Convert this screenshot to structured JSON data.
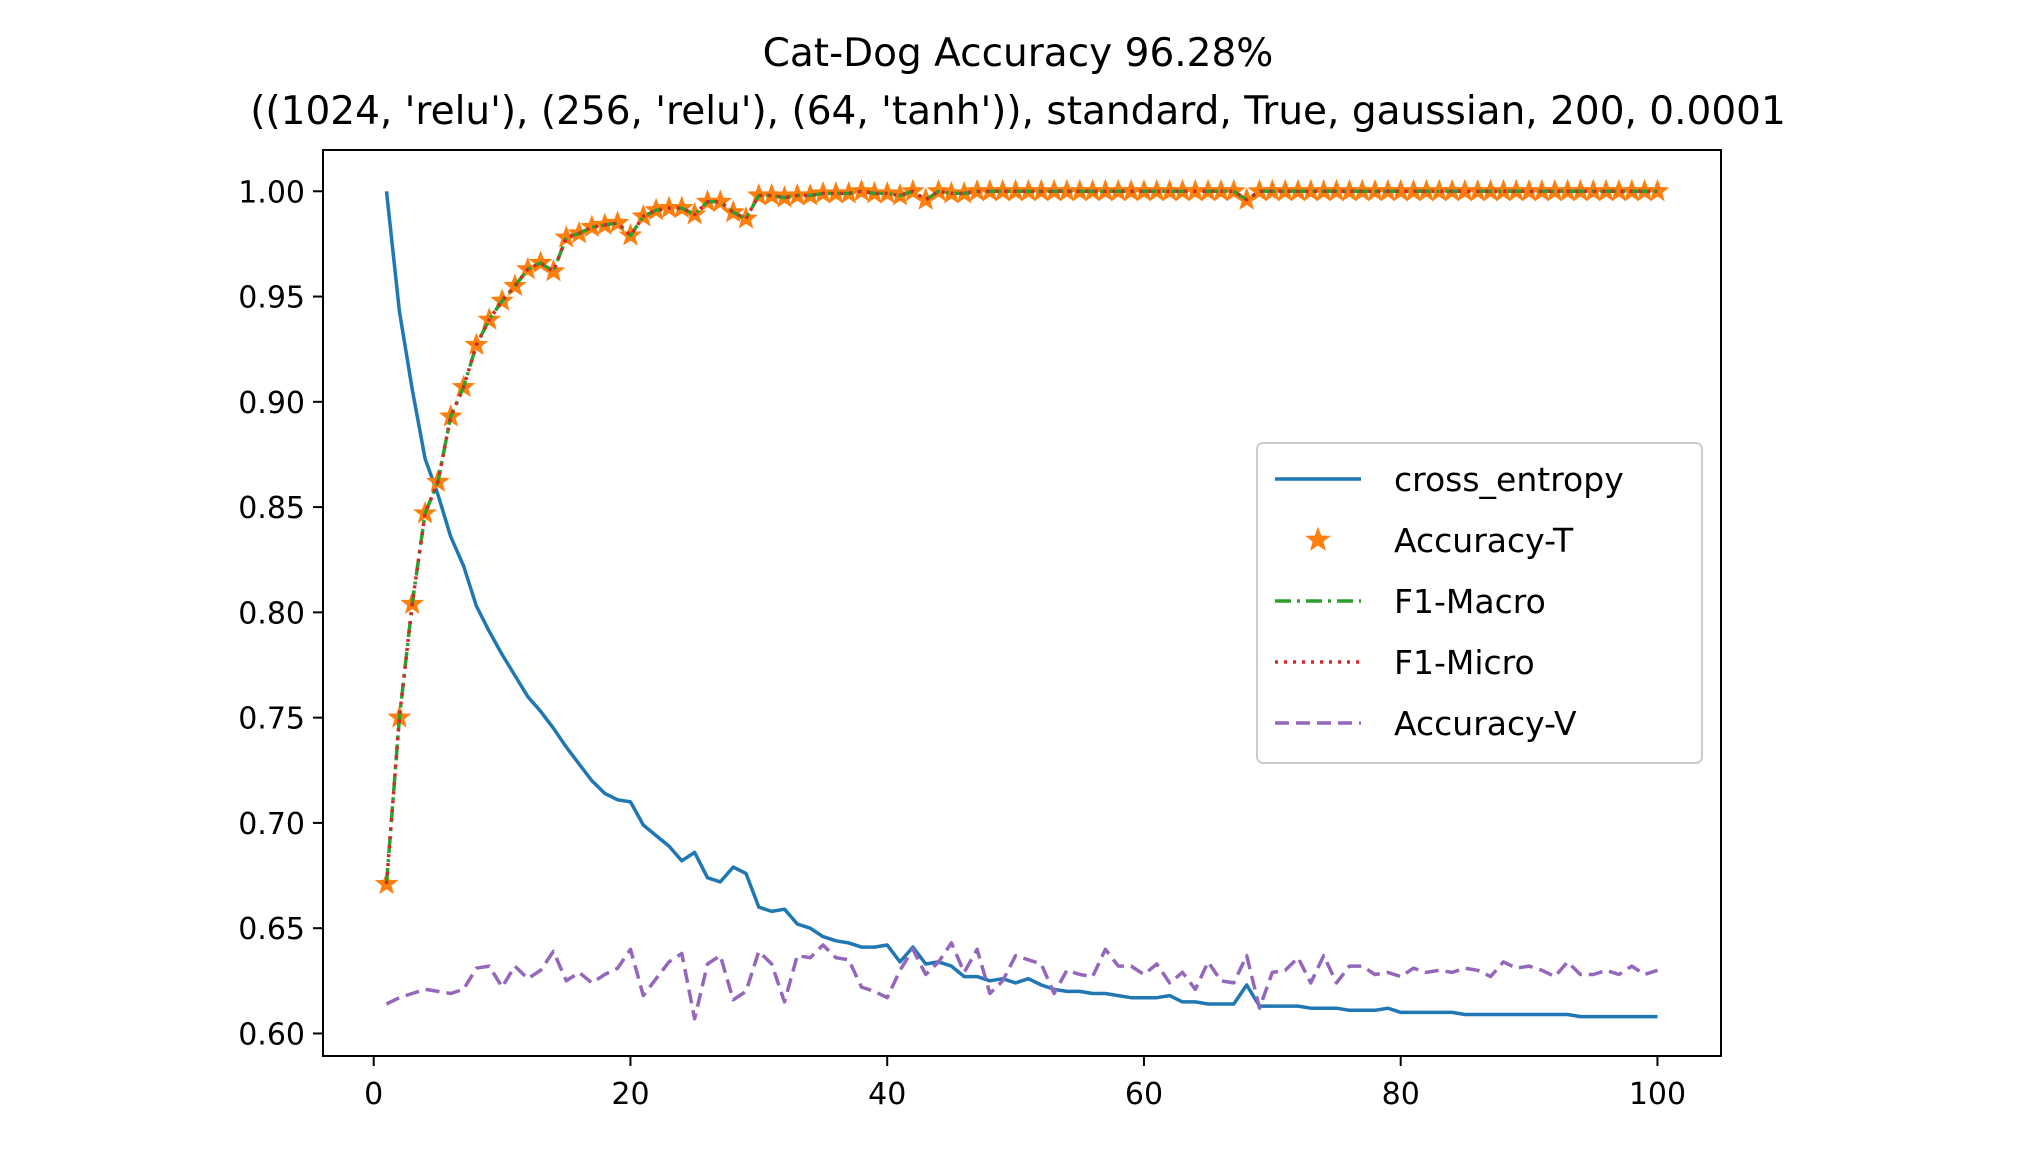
{
  "chart_data": {
    "type": "line",
    "title": "Cat-Dog Accuracy 96.28%",
    "subtitle": "((1024, 'relu'), (256, 'relu'), (64, 'tanh')), standard, True, gaussian, 200, 0.0001",
    "xlabel": "",
    "ylabel": "",
    "xlim": [
      -3.95,
      104.95
    ],
    "ylim": [
      0.5893,
      1.0196
    ],
    "xticks": [
      0,
      20,
      40,
      60,
      80,
      100
    ],
    "xtick_labels": [
      "0",
      "20",
      "40",
      "60",
      "80",
      "100"
    ],
    "yticks": [
      0.6,
      0.65,
      0.7,
      0.75,
      0.8,
      0.85,
      0.9,
      0.95,
      1.0
    ],
    "ytick_labels": [
      "0.60",
      "0.65",
      "0.70",
      "0.75",
      "0.80",
      "0.85",
      "0.90",
      "0.95",
      "1.00"
    ],
    "grid": false,
    "legend": "center-right",
    "x_start": 1,
    "x_step": 1,
    "series": [
      {
        "name": "cross_entropy",
        "color": "#1f77b4",
        "style": "solid",
        "values": [
          1.0,
          0.943,
          0.906,
          0.873,
          0.856,
          0.836,
          0.822,
          0.803,
          0.791,
          0.78,
          0.77,
          0.76,
          0.753,
          0.745,
          0.736,
          0.728,
          0.72,
          0.714,
          0.711,
          0.71,
          0.699,
          0.694,
          0.689,
          0.682,
          0.686,
          0.674,
          0.672,
          0.679,
          0.676,
          0.66,
          0.658,
          0.659,
          0.652,
          0.65,
          0.646,
          0.644,
          0.643,
          0.641,
          0.641,
          0.642,
          0.634,
          0.641,
          0.633,
          0.634,
          0.632,
          0.627,
          0.627,
          0.625,
          0.626,
          0.624,
          0.626,
          0.623,
          0.621,
          0.62,
          0.62,
          0.619,
          0.619,
          0.618,
          0.617,
          0.617,
          0.617,
          0.618,
          0.615,
          0.615,
          0.614,
          0.614,
          0.614,
          0.623,
          0.613,
          0.613,
          0.613,
          0.613,
          0.612,
          0.612,
          0.612,
          0.611,
          0.611,
          0.611,
          0.612,
          0.61,
          0.61,
          0.61,
          0.61,
          0.61,
          0.609,
          0.609,
          0.609,
          0.609,
          0.609,
          0.609,
          0.609,
          0.609,
          0.609,
          0.608,
          0.608,
          0.608,
          0.608,
          0.608,
          0.608,
          0.608
        ]
      },
      {
        "name": "Accuracy-T",
        "color": "#ff7f0e",
        "style": "star",
        "values": [
          0.671,
          0.75,
          0.804,
          0.847,
          0.862,
          0.893,
          0.907,
          0.927,
          0.939,
          0.948,
          0.955,
          0.963,
          0.966,
          0.962,
          0.978,
          0.98,
          0.983,
          0.984,
          0.985,
          0.979,
          0.988,
          0.991,
          0.992,
          0.992,
          0.989,
          0.995,
          0.995,
          0.99,
          0.987,
          0.998,
          0.998,
          0.997,
          0.998,
          0.998,
          0.999,
          0.999,
          0.999,
          1.0,
          0.999,
          0.999,
          0.998,
          1.0,
          0.996,
          1.0,
          0.999,
          0.999,
          1.0,
          1.0,
          1.0,
          1.0,
          1.0,
          1.0,
          1.0,
          1.0,
          1.0,
          1.0,
          1.0,
          1.0,
          1.0,
          1.0,
          1.0,
          1.0,
          1.0,
          1.0,
          1.0,
          1.0,
          1.0,
          0.996,
          1.0,
          1.0,
          1.0,
          1.0,
          1.0,
          1.0,
          1.0,
          1.0,
          1.0,
          1.0,
          1.0,
          1.0,
          1.0,
          1.0,
          1.0,
          1.0,
          1.0,
          1.0,
          1.0,
          1.0,
          1.0,
          1.0,
          1.0,
          1.0,
          1.0,
          1.0,
          1.0,
          1.0,
          1.0,
          1.0,
          1.0,
          1.0
        ]
      },
      {
        "name": "F1-Macro",
        "color": "#2ca02c",
        "style": "dashdot",
        "values": [
          0.671,
          0.75,
          0.804,
          0.847,
          0.862,
          0.893,
          0.907,
          0.927,
          0.939,
          0.948,
          0.955,
          0.963,
          0.966,
          0.962,
          0.978,
          0.98,
          0.983,
          0.984,
          0.985,
          0.979,
          0.988,
          0.991,
          0.992,
          0.992,
          0.989,
          0.995,
          0.995,
          0.99,
          0.987,
          0.998,
          0.998,
          0.997,
          0.998,
          0.998,
          0.999,
          0.999,
          0.999,
          1.0,
          0.999,
          0.999,
          0.998,
          1.0,
          0.996,
          1.0,
          0.999,
          0.999,
          1.0,
          1.0,
          1.0,
          1.0,
          1.0,
          1.0,
          1.0,
          1.0,
          1.0,
          1.0,
          1.0,
          1.0,
          1.0,
          1.0,
          1.0,
          1.0,
          1.0,
          1.0,
          1.0,
          1.0,
          1.0,
          0.996,
          1.0,
          1.0,
          1.0,
          1.0,
          1.0,
          1.0,
          1.0,
          1.0,
          1.0,
          1.0,
          1.0,
          1.0,
          1.0,
          1.0,
          1.0,
          1.0,
          1.0,
          1.0,
          1.0,
          1.0,
          1.0,
          1.0,
          1.0,
          1.0,
          1.0,
          1.0,
          1.0,
          1.0,
          1.0,
          1.0,
          1.0,
          1.0
        ]
      },
      {
        "name": "F1-Micro",
        "color": "#d62728",
        "style": "dotted",
        "values": [
          0.671,
          0.75,
          0.804,
          0.847,
          0.862,
          0.893,
          0.907,
          0.927,
          0.939,
          0.948,
          0.955,
          0.963,
          0.966,
          0.962,
          0.978,
          0.98,
          0.983,
          0.984,
          0.985,
          0.979,
          0.988,
          0.991,
          0.992,
          0.992,
          0.989,
          0.995,
          0.995,
          0.99,
          0.987,
          0.998,
          0.998,
          0.997,
          0.998,
          0.998,
          0.999,
          0.999,
          0.999,
          1.0,
          0.999,
          0.999,
          0.998,
          1.0,
          0.996,
          1.0,
          0.999,
          0.999,
          1.0,
          1.0,
          1.0,
          1.0,
          1.0,
          1.0,
          1.0,
          1.0,
          1.0,
          1.0,
          1.0,
          1.0,
          1.0,
          1.0,
          1.0,
          1.0,
          1.0,
          1.0,
          1.0,
          1.0,
          1.0,
          0.996,
          1.0,
          1.0,
          1.0,
          1.0,
          1.0,
          1.0,
          1.0,
          1.0,
          1.0,
          1.0,
          1.0,
          1.0,
          1.0,
          1.0,
          1.0,
          1.0,
          1.0,
          1.0,
          1.0,
          1.0,
          1.0,
          1.0,
          1.0,
          1.0,
          1.0,
          1.0,
          1.0,
          1.0,
          1.0,
          1.0,
          1.0,
          1.0
        ]
      },
      {
        "name": "Accuracy-V",
        "color": "#9467bd",
        "style": "dashed",
        "values": [
          0.614,
          0.617,
          0.619,
          0.621,
          0.62,
          0.619,
          0.621,
          0.631,
          0.632,
          0.622,
          0.632,
          0.626,
          0.63,
          0.639,
          0.625,
          0.629,
          0.624,
          0.628,
          0.631,
          0.64,
          0.618,
          0.626,
          0.634,
          0.638,
          0.607,
          0.633,
          0.637,
          0.616,
          0.62,
          0.639,
          0.633,
          0.615,
          0.637,
          0.636,
          0.642,
          0.636,
          0.635,
          0.622,
          0.62,
          0.617,
          0.63,
          0.64,
          0.628,
          0.634,
          0.643,
          0.629,
          0.64,
          0.619,
          0.625,
          0.637,
          0.635,
          0.633,
          0.619,
          0.63,
          0.628,
          0.627,
          0.64,
          0.632,
          0.632,
          0.628,
          0.633,
          0.624,
          0.629,
          0.621,
          0.634,
          0.625,
          0.624,
          0.637,
          0.612,
          0.629,
          0.63,
          0.636,
          0.624,
          0.637,
          0.624,
          0.632,
          0.632,
          0.628,
          0.629,
          0.627,
          0.631,
          0.629,
          0.63,
          0.629,
          0.631,
          0.63,
          0.627,
          0.634,
          0.631,
          0.632,
          0.63,
          0.627,
          0.634,
          0.628,
          0.628,
          0.63,
          0.628,
          0.632,
          0.628,
          0.63
        ]
      }
    ]
  }
}
